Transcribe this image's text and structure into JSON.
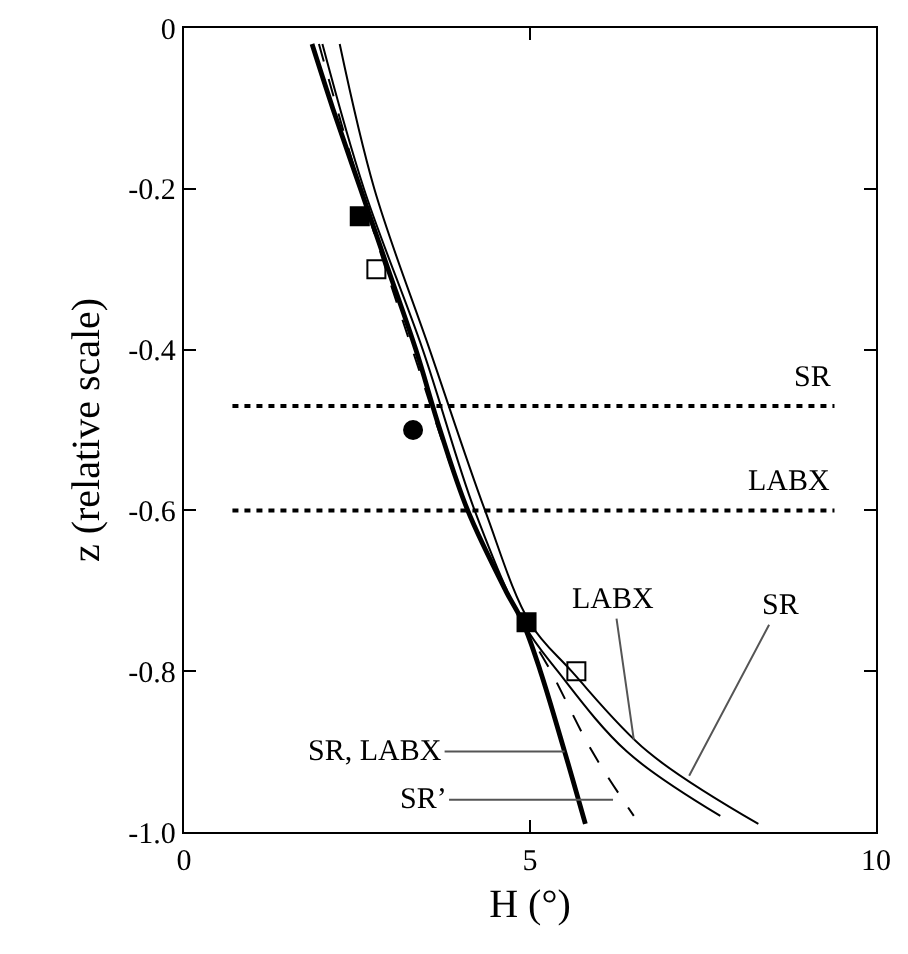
{
  "chart_data": {
    "type": "line",
    "xlabel": "H (°)",
    "ylabel": "z (relative scale)",
    "xlim": [
      0,
      10
    ],
    "xticks": [
      0,
      5,
      10
    ],
    "ylim": [
      -1,
      0
    ],
    "yticks": [
      0,
      -0.2,
      -0.4,
      -0.6,
      -0.8,
      {
        "value": -1,
        "label": "-1.0"
      }
    ],
    "grid": false,
    "legend": false,
    "series": [
      {
        "color": "#000000",
        "line_style": "solid",
        "x": [
          1.85,
          2.15,
          2.55,
          2.95,
          3.35,
          3.7,
          4.1,
          4.65,
          4.9,
          5.15,
          5.5,
          5.8
        ],
        "values": [
          -0.02,
          -0.1,
          -0.2,
          -0.3,
          -0.4,
          -0.5,
          -0.6,
          -0.7,
          -0.74,
          -0.8,
          -0.9,
          -0.99
        ]
      },
      {
        "color": "#000000",
        "line_style": "dashed",
        "x": [
          1.95,
          2.55,
          3.3,
          4.1,
          4.9,
          5.3,
          5.9,
          6.5
        ],
        "values": [
          -0.02,
          -0.2,
          -0.4,
          -0.6,
          -0.74,
          -0.8,
          -0.9,
          -0.98
        ]
      },
      {
        "color": "#000000",
        "line_style": "solid",
        "x": [
          2.0,
          2.6,
          3.45,
          4.2,
          4.9,
          5.4,
          6.4,
          7.75
        ],
        "values": [
          -0.02,
          -0.2,
          -0.4,
          -0.6,
          -0.74,
          -0.8,
          -0.9,
          -0.98
        ]
      },
      {
        "color": "#000000",
        "line_style": "solid",
        "x": [
          2.25,
          2.75,
          3.55,
          4.35,
          5.0,
          5.6,
          6.7,
          8.3
        ],
        "values": [
          -0.02,
          -0.2,
          -0.4,
          -0.6,
          -0.74,
          -0.8,
          -0.9,
          -0.99
        ]
      },
      {
        "type": "scatter",
        "marker": "square",
        "color": "#000000",
        "x": [
          2.54,
          4.95
        ],
        "values": [
          -0.234,
          -0.739
        ]
      },
      {
        "type": "scatter",
        "marker": "square",
        "color": "#000000",
        "x": [
          2.78,
          5.67
        ],
        "values": [
          -0.3,
          -0.8
        ]
      },
      {
        "type": "scatter",
        "marker": "circle",
        "color": "#000000",
        "x": [
          3.31
        ],
        "values": [
          -0.5
        ]
      }
    ],
    "ref_lines": [
      {
        "axis": "y",
        "value": -0.47,
        "label": "SR",
        "line_style": "dotted",
        "color": "#000000"
      },
      {
        "axis": "y",
        "value": -0.6,
        "label": "LABX",
        "line_style": "dotted",
        "color": "#000000"
      }
    ],
    "annotations": [
      {
        "text": "LABX",
        "x": 6.5,
        "y": -0.885
      },
      {
        "text": "SR",
        "x": 7.3,
        "y": -0.93
      },
      {
        "text": "SR, LABX",
        "x": 5.5,
        "y": -0.9
      },
      {
        "text": "SR’",
        "x": 6.2,
        "y": -0.96
      }
    ]
  }
}
